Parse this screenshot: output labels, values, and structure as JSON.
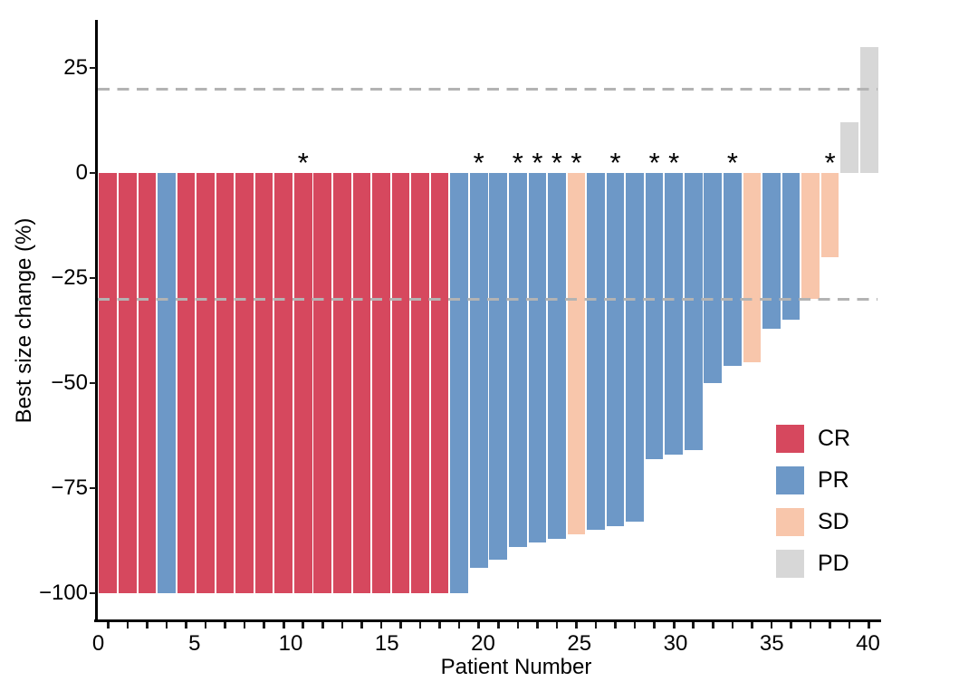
{
  "chart_data": {
    "type": "bar",
    "subtype": "waterfall-best-response",
    "title": "",
    "xlabel": "Patient Number",
    "ylabel": "Best size change (%)",
    "xlim": [
      0,
      40
    ],
    "ylim": [
      -107,
      38
    ],
    "grid": false,
    "x_tick_labels": [
      "0",
      "5",
      "10",
      "15",
      "20",
      "25",
      "30",
      "35",
      "40"
    ],
    "x_minor_tick_count": 40,
    "y_ticks": [
      25,
      0,
      -25,
      -50,
      -75,
      -100
    ],
    "y_tick_labels": [
      "25",
      "0",
      "−25",
      "−50",
      "−75",
      "−100"
    ],
    "reference_lines": {
      "upper": 20,
      "lower": -30,
      "style": "dashed",
      "color": "#b3b3b3"
    },
    "annotation_symbol": "*",
    "legend_position": "inside-right",
    "legend": [
      {
        "label": "CR",
        "color": "#d6485e"
      },
      {
        "label": "PR",
        "color": "#6d98c7"
      },
      {
        "label": "SD",
        "color": "#f8c6ab"
      },
      {
        "label": "PD",
        "color": "#d7d7d7"
      }
    ],
    "series": [
      {
        "patient": 1,
        "value": -100,
        "response": "CR",
        "annotated": false
      },
      {
        "patient": 2,
        "value": -100,
        "response": "CR",
        "annotated": false
      },
      {
        "patient": 3,
        "value": -100,
        "response": "CR",
        "annotated": false
      },
      {
        "patient": 4,
        "value": -100,
        "response": "PR",
        "annotated": false
      },
      {
        "patient": 5,
        "value": -100,
        "response": "CR",
        "annotated": false
      },
      {
        "patient": 6,
        "value": -100,
        "response": "CR",
        "annotated": false
      },
      {
        "patient": 7,
        "value": -100,
        "response": "CR",
        "annotated": false
      },
      {
        "patient": 8,
        "value": -100,
        "response": "CR",
        "annotated": false
      },
      {
        "patient": 9,
        "value": -100,
        "response": "CR",
        "annotated": false
      },
      {
        "patient": 10,
        "value": -100,
        "response": "CR",
        "annotated": false
      },
      {
        "patient": 11,
        "value": -100,
        "response": "CR",
        "annotated": true
      },
      {
        "patient": 12,
        "value": -100,
        "response": "CR",
        "annotated": false
      },
      {
        "patient": 13,
        "value": -100,
        "response": "CR",
        "annotated": false
      },
      {
        "patient": 14,
        "value": -100,
        "response": "CR",
        "annotated": false
      },
      {
        "patient": 15,
        "value": -100,
        "response": "CR",
        "annotated": false
      },
      {
        "patient": 16,
        "value": -100,
        "response": "CR",
        "annotated": false
      },
      {
        "patient": 17,
        "value": -100,
        "response": "CR",
        "annotated": false
      },
      {
        "patient": 18,
        "value": -100,
        "response": "CR",
        "annotated": false
      },
      {
        "patient": 19,
        "value": -100,
        "response": "PR",
        "annotated": false
      },
      {
        "patient": 20,
        "value": -94,
        "response": "PR",
        "annotated": true
      },
      {
        "patient": 21,
        "value": -92,
        "response": "PR",
        "annotated": false
      },
      {
        "patient": 22,
        "value": -89,
        "response": "PR",
        "annotated": true
      },
      {
        "patient": 23,
        "value": -88,
        "response": "PR",
        "annotated": true
      },
      {
        "patient": 24,
        "value": -87,
        "response": "PR",
        "annotated": true
      },
      {
        "patient": 25,
        "value": -86,
        "response": "SD",
        "annotated": true
      },
      {
        "patient": 26,
        "value": -85,
        "response": "PR",
        "annotated": false
      },
      {
        "patient": 27,
        "value": -84,
        "response": "PR",
        "annotated": true
      },
      {
        "patient": 28,
        "value": -83,
        "response": "PR",
        "annotated": false
      },
      {
        "patient": 29,
        "value": -68,
        "response": "PR",
        "annotated": true
      },
      {
        "patient": 30,
        "value": -67,
        "response": "PR",
        "annotated": true
      },
      {
        "patient": 31,
        "value": -66,
        "response": "PR",
        "annotated": false
      },
      {
        "patient": 32,
        "value": -50,
        "response": "PR",
        "annotated": false
      },
      {
        "patient": 33,
        "value": -46,
        "response": "PR",
        "annotated": true
      },
      {
        "patient": 34,
        "value": -45,
        "response": "SD",
        "annotated": false
      },
      {
        "patient": 35,
        "value": -37,
        "response": "PR",
        "annotated": false
      },
      {
        "patient": 36,
        "value": -35,
        "response": "PR",
        "annotated": false
      },
      {
        "patient": 37,
        "value": -30,
        "response": "SD",
        "annotated": false
      },
      {
        "patient": 38,
        "value": -20,
        "response": "SD",
        "annotated": true
      },
      {
        "patient": 39,
        "value": 12,
        "response": "PD",
        "annotated": false
      },
      {
        "patient": 40,
        "value": 30,
        "response": "PD",
        "annotated": false
      }
    ]
  }
}
